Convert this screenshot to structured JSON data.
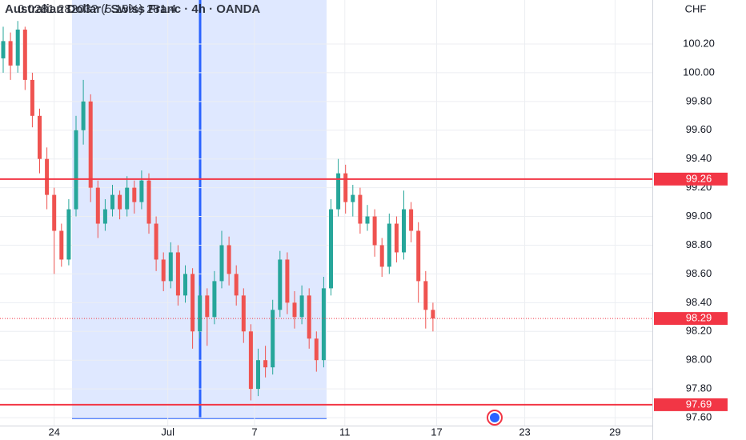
{
  "chart_data": {
    "type": "candlestick",
    "title": "Australian Dollar / Swiss Franc · 4h · OANDA",
    "info": "0.0281 28203? (5.15%) 281.4",
    "y_unit": "CHF",
    "up_color": "#26a69a",
    "down_color": "#ef5350",
    "grid": true,
    "ylim": [
      97.528,
      100.506
    ],
    "yticks": [
      {
        "value": 97.6,
        "label": "97.60"
      },
      {
        "value": 97.8,
        "label": "97.80"
      },
      {
        "value": 98.0,
        "label": "98.00"
      },
      {
        "value": 98.2,
        "label": "98.20"
      },
      {
        "value": 98.4,
        "label": "98.40"
      },
      {
        "value": 98.6,
        "label": "98.60"
      },
      {
        "value": 98.8,
        "label": "98.80"
      },
      {
        "value": 99.0,
        "label": "99.00"
      },
      {
        "value": 99.2,
        "label": "99.20"
      },
      {
        "value": 99.4,
        "label": "99.40"
      },
      {
        "value": 99.6,
        "label": "99.60"
      },
      {
        "value": 99.8,
        "label": "99.80"
      },
      {
        "value": 100.0,
        "label": "100.00"
      },
      {
        "value": 100.2,
        "label": "100.20"
      }
    ],
    "xlim": [
      -0.44,
      89.12
    ],
    "xticks": [
      {
        "value": 7,
        "label": "24"
      },
      {
        "value": 22.6,
        "label": "Jul"
      },
      {
        "value": 34.5,
        "label": "7"
      },
      {
        "value": 46.9,
        "label": "11"
      },
      {
        "value": 59.5,
        "label": "17"
      },
      {
        "value": 71.6,
        "label": "23"
      },
      {
        "value": 84,
        "label": "29"
      }
    ],
    "levels": [
      {
        "value": 99.26,
        "label": "99.26",
        "color": "#f23645"
      },
      {
        "value": 97.69,
        "label": "97.69",
        "color": "#f23645"
      }
    ],
    "last_price": {
      "value": 98.29,
      "label": "98.29",
      "color": "#f23645"
    },
    "candles": [
      [
        100.1,
        100.32,
        100.0,
        100.22
      ],
      [
        100.22,
        100.28,
        99.95,
        100.05
      ],
      [
        100.05,
        100.36,
        100.0,
        100.3
      ],
      [
        100.3,
        100.32,
        99.88,
        99.95
      ],
      [
        99.95,
        100.0,
        99.62,
        99.7
      ],
      [
        99.7,
        99.75,
        99.3,
        99.4
      ],
      [
        99.4,
        99.48,
        99.05,
        99.15
      ],
      [
        99.15,
        99.2,
        98.6,
        98.9
      ],
      [
        98.9,
        98.95,
        98.65,
        98.7
      ],
      [
        98.7,
        99.12,
        98.66,
        99.05
      ],
      [
        99.05,
        99.7,
        99.0,
        99.6
      ],
      [
        99.6,
        99.95,
        99.5,
        99.8
      ],
      [
        99.8,
        99.85,
        99.1,
        99.2
      ],
      [
        99.2,
        99.25,
        98.85,
        98.95
      ],
      [
        98.95,
        99.12,
        98.9,
        99.05
      ],
      [
        99.05,
        99.22,
        99.0,
        99.15
      ],
      [
        99.15,
        99.18,
        98.98,
        99.05
      ],
      [
        99.05,
        99.28,
        99.0,
        99.2
      ],
      [
        99.2,
        99.25,
        99.02,
        99.1
      ],
      [
        99.1,
        99.32,
        99.05,
        99.25
      ],
      [
        99.25,
        99.3,
        98.88,
        98.95
      ],
      [
        98.95,
        99.0,
        98.62,
        98.7
      ],
      [
        98.7,
        98.75,
        98.48,
        98.55
      ],
      [
        98.55,
        98.82,
        98.5,
        98.75
      ],
      [
        98.75,
        98.8,
        98.38,
        98.45
      ],
      [
        98.45,
        98.66,
        98.4,
        98.6
      ],
      [
        98.6,
        98.64,
        98.08,
        98.2
      ],
      [
        98.2,
        98.52,
        98.15,
        98.45
      ],
      [
        98.45,
        98.5,
        98.1,
        98.3
      ],
      [
        98.3,
        98.62,
        98.25,
        98.55
      ],
      [
        98.55,
        98.9,
        98.5,
        98.8
      ],
      [
        98.8,
        98.86,
        98.52,
        98.6
      ],
      [
        98.6,
        98.66,
        98.38,
        98.45
      ],
      [
        98.45,
        98.5,
        98.12,
        98.2
      ],
      [
        98.2,
        98.25,
        97.72,
        97.8
      ],
      [
        97.8,
        98.08,
        97.75,
        98.0
      ],
      [
        98.0,
        98.1,
        97.88,
        97.95
      ],
      [
        97.95,
        98.42,
        97.9,
        98.35
      ],
      [
        98.35,
        98.76,
        98.3,
        98.7
      ],
      [
        98.7,
        98.75,
        98.32,
        98.4
      ],
      [
        98.4,
        98.48,
        98.22,
        98.3
      ],
      [
        98.3,
        98.52,
        98.25,
        98.45
      ],
      [
        98.45,
        98.5,
        98.08,
        98.15
      ],
      [
        98.15,
        98.2,
        97.92,
        98.0
      ],
      [
        98.0,
        98.58,
        97.95,
        98.5
      ],
      [
        98.5,
        99.12,
        98.45,
        99.05
      ],
      [
        99.05,
        99.4,
        99.0,
        99.3
      ],
      [
        99.3,
        99.36,
        99.02,
        99.1
      ],
      [
        99.1,
        99.22,
        99.0,
        99.15
      ],
      [
        99.15,
        99.2,
        98.88,
        98.95
      ],
      [
        98.95,
        99.08,
        98.9,
        99.0
      ],
      [
        99.0,
        99.05,
        98.72,
        98.8
      ],
      [
        98.8,
        98.85,
        98.58,
        98.65
      ],
      [
        98.65,
        99.02,
        98.6,
        98.95
      ],
      [
        98.95,
        99.0,
        98.68,
        98.75
      ],
      [
        98.75,
        99.18,
        98.7,
        99.05
      ],
      [
        99.05,
        99.1,
        98.82,
        98.9
      ],
      [
        98.9,
        98.96,
        98.4,
        98.55
      ],
      [
        98.55,
        98.62,
        98.22,
        98.35
      ],
      [
        98.35,
        98.4,
        98.2,
        98.29
      ]
    ]
  }
}
